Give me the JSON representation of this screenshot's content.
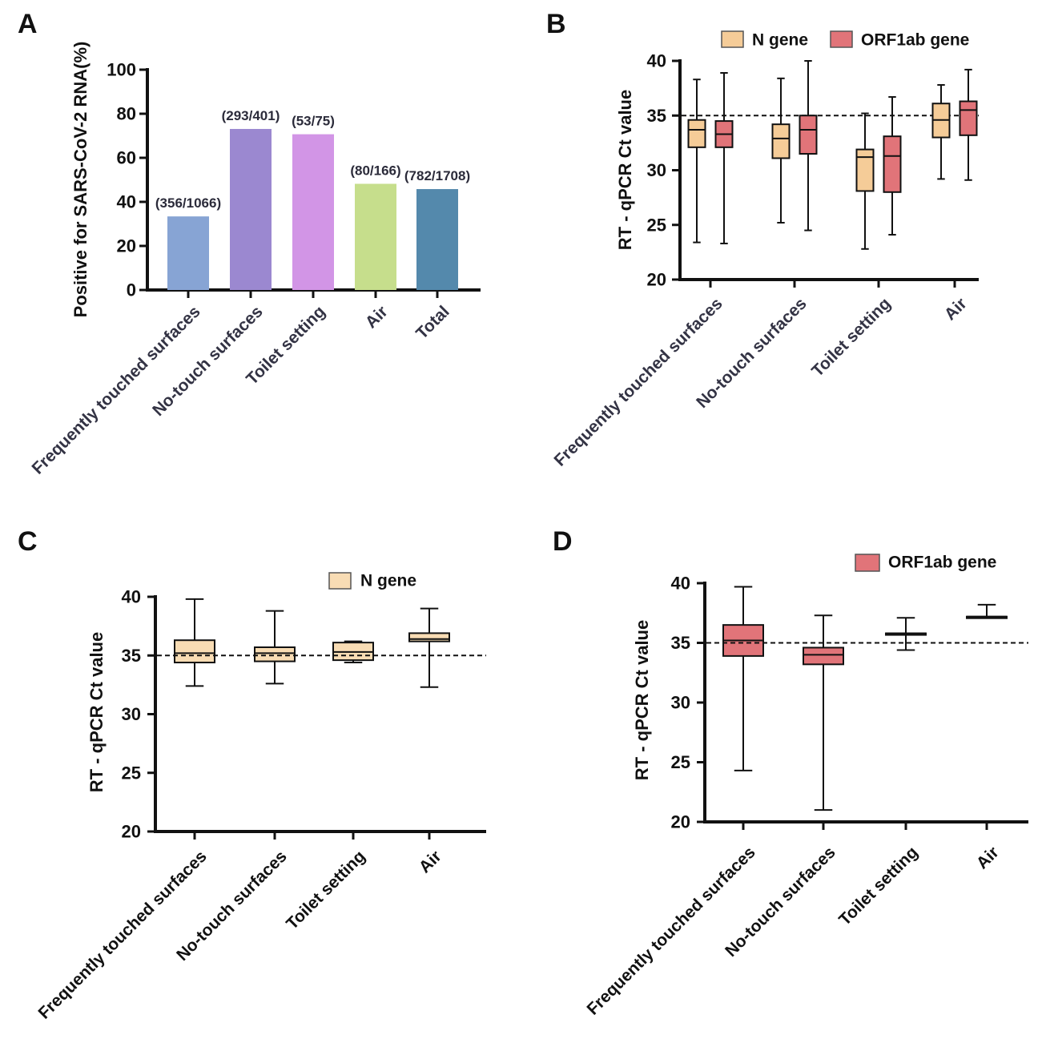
{
  "colors": {
    "text": "#111111",
    "catA": "#333344",
    "n_gene": "#f5cc98",
    "orf1ab": "#e17479",
    "n_gene_light": "#f8dcb4",
    "orf1ab_light": "#e68e92"
  },
  "chart_data": [
    {
      "id": "A",
      "panel_label": "A",
      "type": "bar",
      "ylabel": "Positive for SARS-CoV-2 RNA(%)",
      "ylim": [
        0,
        100
      ],
      "yticks": [
        0,
        20,
        40,
        60,
        80,
        100
      ],
      "categories": [
        "Frequently touched surfaces",
        "No-touch surfaces",
        "Toilet setting",
        "Air",
        "Total"
      ],
      "values": [
        33.4,
        73.1,
        70.7,
        48.2,
        45.8
      ],
      "data_labels": [
        "(356/1066)",
        "(293/401)",
        "(53/75)",
        "(80/166)",
        "(782/1708)"
      ],
      "colors": [
        "#87a4d4",
        "#9b88d0",
        "#d295e6",
        "#c6de8c",
        "#5489ac"
      ]
    },
    {
      "id": "B",
      "panel_label": "B",
      "type": "box",
      "ylabel": "RT - qPCR Ct value",
      "ylim": [
        20,
        40
      ],
      "yticks": [
        20,
        25,
        30,
        35,
        40
      ],
      "reference_line": 35,
      "legend": [
        "N gene",
        "ORF1ab gene"
      ],
      "legend_position": "top",
      "categories": [
        "Frequently touched surfaces",
        "No-touch surfaces",
        "Toilet setting",
        "Air"
      ],
      "series": [
        {
          "name": "N gene",
          "color": "#f5cc98",
          "boxes": [
            {
              "min": 23.4,
              "q1": 32.1,
              "median": 33.7,
              "q3": 34.6,
              "max": 38.3
            },
            {
              "min": 25.2,
              "q1": 31.1,
              "median": 32.9,
              "q3": 34.2,
              "max": 38.4
            },
            {
              "min": 22.8,
              "q1": 28.1,
              "median": 31.2,
              "q3": 31.9,
              "max": 35.2
            },
            {
              "min": 29.2,
              "q1": 33.0,
              "median": 34.6,
              "q3": 36.1,
              "max": 37.8
            }
          ]
        },
        {
          "name": "ORF1ab gene",
          "color": "#e17479",
          "boxes": [
            {
              "min": 23.3,
              "q1": 32.1,
              "median": 33.3,
              "q3": 34.5,
              "max": 38.9
            },
            {
              "min": 24.5,
              "q1": 31.5,
              "median": 33.7,
              "q3": 35.0,
              "max": 40.0
            },
            {
              "min": 24.1,
              "q1": 28.0,
              "median": 31.3,
              "q3": 33.1,
              "max": 36.7
            },
            {
              "min": 29.1,
              "q1": 33.2,
              "median": 35.5,
              "q3": 36.3,
              "max": 39.2
            }
          ]
        }
      ]
    },
    {
      "id": "C",
      "panel_label": "C",
      "type": "box",
      "ylabel": "RT - qPCR Ct value",
      "ylim": [
        20,
        40
      ],
      "yticks": [
        20,
        25,
        30,
        35,
        40
      ],
      "reference_line": 35,
      "legend": [
        "N gene"
      ],
      "legend_position": "top-right",
      "categories": [
        "Frequently touched surfaces",
        "No-touch surfaces",
        "Toilet setting",
        "Air"
      ],
      "series": [
        {
          "name": "N gene",
          "color": "#f8dcb4",
          "boxes": [
            {
              "min": 32.4,
              "q1": 34.4,
              "median": 35.2,
              "q3": 36.3,
              "max": 39.8
            },
            {
              "min": 32.6,
              "q1": 34.5,
              "median": 35.2,
              "q3": 35.7,
              "max": 38.8
            },
            {
              "min": 34.4,
              "q1": 34.6,
              "median": 35.3,
              "q3": 36.1,
              "max": 36.2
            },
            {
              "min": 32.3,
              "q1": 36.2,
              "median": 36.4,
              "q3": 36.9,
              "max": 39.0
            }
          ]
        }
      ]
    },
    {
      "id": "D",
      "panel_label": "D",
      "type": "box",
      "ylabel": "RT - qPCR Ct value",
      "ylim": [
        20,
        40
      ],
      "yticks": [
        20,
        25,
        30,
        35,
        40
      ],
      "reference_line": 35,
      "legend": [
        "ORF1ab gene"
      ],
      "legend_position": "top-right",
      "categories": [
        "Frequently touched surfaces",
        "No-touch surfaces",
        "Toilet setting",
        "Air"
      ],
      "series": [
        {
          "name": "ORF1ab gene",
          "color": "#e17479",
          "boxes": [
            {
              "min": 24.3,
              "q1": 33.9,
              "median": 35.2,
              "q3": 36.5,
              "max": 39.7
            },
            {
              "min": 21.0,
              "q1": 33.2,
              "median": 34.0,
              "q3": 34.6,
              "max": 37.3
            },
            {
              "min": 34.4,
              "q1": 35.8,
              "median": 35.8,
              "q3": 35.8,
              "max": 37.1
            },
            {
              "min": 37.1,
              "q1": 37.2,
              "median": 37.2,
              "q3": 37.2,
              "max": 38.2
            }
          ]
        }
      ]
    }
  ]
}
